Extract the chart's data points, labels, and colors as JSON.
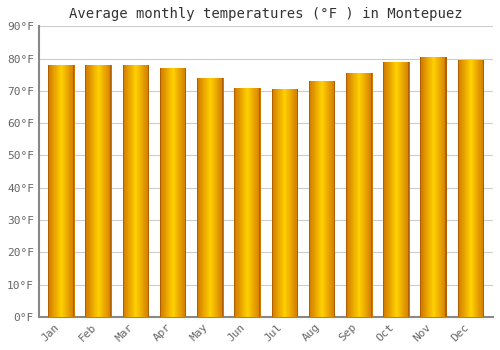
{
  "title": "Average monthly temperatures (°F ) in Montepuez",
  "months": [
    "Jan",
    "Feb",
    "Mar",
    "Apr",
    "May",
    "Jun",
    "Jul",
    "Aug",
    "Sep",
    "Oct",
    "Nov",
    "Dec"
  ],
  "values": [
    78.0,
    78.0,
    78.0,
    77.0,
    74.0,
    71.0,
    70.5,
    73.0,
    75.5,
    79.0,
    80.5,
    79.5
  ],
  "bar_color_center": "#FFCC00",
  "bar_color_edge": "#E07800",
  "bar_color_mid": "#FFA500",
  "background_color": "#FFFFFF",
  "plot_bg_color": "#FFFFFF",
  "ylim": [
    0,
    90
  ],
  "yticks": [
    0,
    10,
    20,
    30,
    40,
    50,
    60,
    70,
    80,
    90
  ],
  "ylabel_suffix": "°F",
  "grid_color": "#CCCCCC",
  "title_fontsize": 10,
  "tick_fontsize": 8,
  "bar_width": 0.7,
  "gradient_steps": 50
}
